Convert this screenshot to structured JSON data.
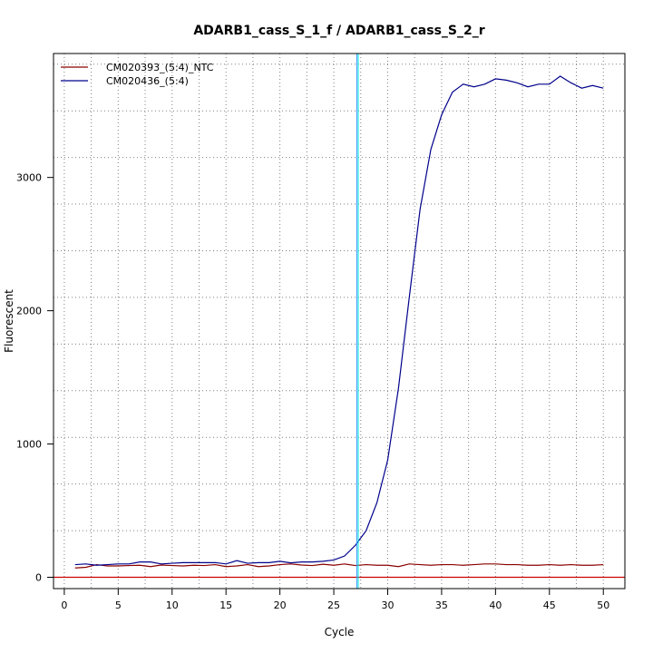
{
  "chart_data": {
    "type": "line",
    "title": "ADARB1_cass_S_1_f / ADARB1_cass_S_2_r",
    "xlabel": "Cycle",
    "ylabel": "Fluorescent",
    "xlim": [
      -1.0,
      52.0
    ],
    "ylim": [
      -85,
      3930
    ],
    "x_ticks": [
      0,
      5,
      10,
      15,
      20,
      25,
      30,
      35,
      40,
      45,
      50
    ],
    "y_ticks": [
      0,
      1000,
      2000,
      3000
    ],
    "x_minor_grid": [
      2.5,
      7.5,
      12.5,
      17.5,
      22.5,
      27.5,
      32.5,
      37.5,
      42.5,
      47.5
    ],
    "y_grid": [
      0,
      350,
      700,
      1050,
      1400,
      1750,
      2100,
      2450,
      2800,
      3150,
      3500,
      3850
    ],
    "grid": true,
    "legend_position": "top-left",
    "threshold": {
      "y": 0,
      "color": "#cc0000"
    },
    "cycle_marker": {
      "x": 27.2,
      "colors": [
        "#3399ff",
        "#00e0e0"
      ]
    },
    "x": [
      1,
      2,
      3,
      4,
      5,
      6,
      7,
      8,
      9,
      10,
      11,
      12,
      13,
      14,
      15,
      16,
      17,
      18,
      19,
      20,
      21,
      22,
      23,
      24,
      25,
      26,
      27,
      28,
      29,
      30,
      31,
      32,
      33,
      34,
      35,
      36,
      37,
      38,
      39,
      40,
      41,
      42,
      43,
      44,
      45,
      46,
      47,
      48,
      49,
      50
    ],
    "series": [
      {
        "name": "CM020393_(5:4)_NTC",
        "color": "#8b0000",
        "values": [
          70,
          75,
          95,
          85,
          85,
          88,
          90,
          80,
          92,
          88,
          85,
          90,
          88,
          95,
          80,
          85,
          95,
          80,
          85,
          95,
          100,
          92,
          88,
          98,
          90,
          100,
          88,
          95,
          90,
          90,
          80,
          100,
          95,
          90,
          95,
          95,
          90,
          95,
          100,
          100,
          95,
          95,
          90,
          90,
          95,
          90,
          95,
          90,
          90,
          95
        ]
      },
      {
        "name": "CM020436_(5:4)",
        "color": "#00008b",
        "values": [
          95,
          100,
          90,
          95,
          100,
          100,
          115,
          115,
          100,
          105,
          110,
          110,
          110,
          110,
          100,
          125,
          105,
          110,
          110,
          120,
          108,
          115,
          115,
          120,
          130,
          160,
          240,
          350,
          560,
          880,
          1420,
          2100,
          2760,
          3210,
          3470,
          3640,
          3700,
          3680,
          3700,
          3740,
          3730,
          3710,
          3680,
          3700,
          3700,
          3760,
          3710,
          3670,
          3690,
          3670
        ]
      }
    ]
  }
}
